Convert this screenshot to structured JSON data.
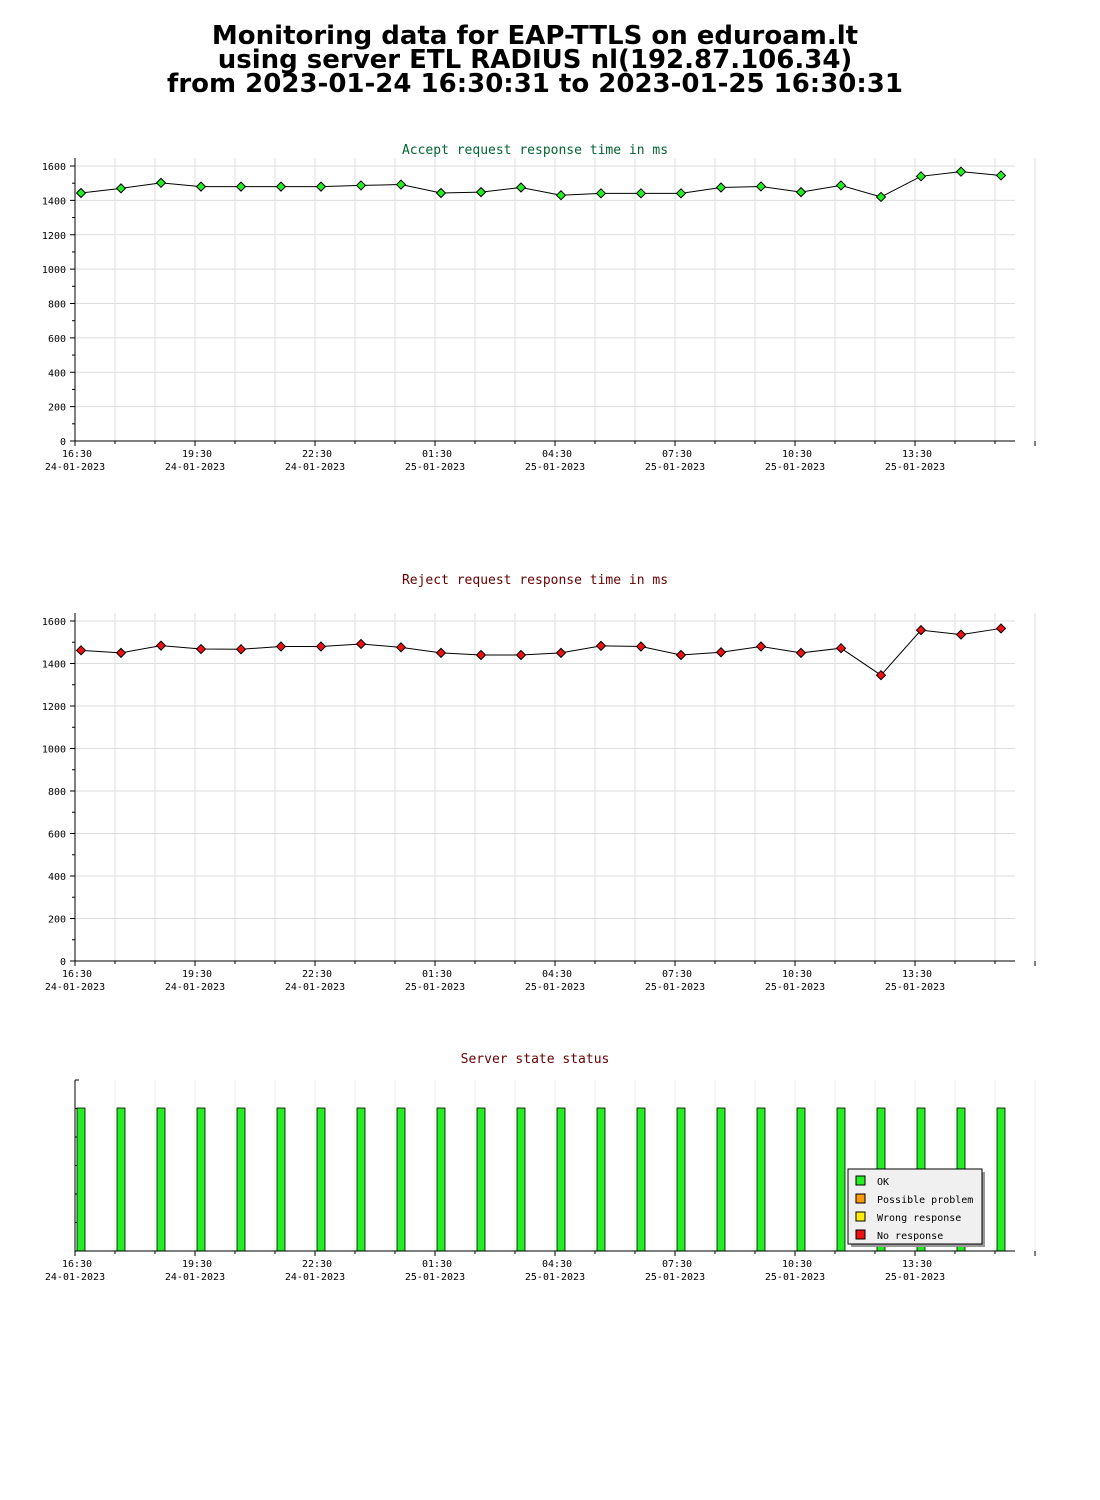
{
  "header": {
    "line1": "Monitoring data for EAP-TTLS on eduroam.lt",
    "line2": "using server ETL RADIUS nl(192.87.106.34)",
    "line3": "from 2023-01-24 16:30:31 to 2023-01-25 16:30:31"
  },
  "x_ticks": [
    {
      "time": "16:30",
      "date": "24-01-2023"
    },
    {
      "time": "19:30",
      "date": "24-01-2023"
    },
    {
      "time": "22:30",
      "date": "24-01-2023"
    },
    {
      "time": "01:30",
      "date": "25-01-2023"
    },
    {
      "time": "04:30",
      "date": "25-01-2023"
    },
    {
      "time": "07:30",
      "date": "25-01-2023"
    },
    {
      "time": "10:30",
      "date": "25-01-2023"
    },
    {
      "time": "13:30",
      "date": "25-01-2023"
    }
  ],
  "chart_data": [
    {
      "type": "line",
      "title": "Accept request response time in ms",
      "title_color": "#006633",
      "marker_color": "#22ee22",
      "ylim": [
        0,
        1600
      ],
      "y_ticks": [
        0,
        200,
        400,
        600,
        800,
        1000,
        1200,
        1400,
        1600
      ],
      "grid": true,
      "values": [
        1443,
        1470,
        1502,
        1480,
        1480,
        1480,
        1480,
        1487,
        1492,
        1443,
        1448,
        1475,
        1430,
        1441,
        1441,
        1441,
        1475,
        1481,
        1448,
        1487,
        1420,
        1540,
        1567,
        1545
      ]
    },
    {
      "type": "line",
      "title": "Reject request response time in ms",
      "title_color": "#660000",
      "marker_color": "#ee1111",
      "ylim": [
        0,
        1600
      ],
      "y_ticks": [
        0,
        200,
        400,
        600,
        800,
        1000,
        1200,
        1400,
        1600
      ],
      "grid": true,
      "values": [
        1462,
        1450,
        1484,
        1468,
        1467,
        1480,
        1480,
        1492,
        1476,
        1450,
        1440,
        1440,
        1450,
        1483,
        1480,
        1440,
        1453,
        1480,
        1450,
        1472,
        1345,
        1557,
        1536,
        1565
      ]
    },
    {
      "type": "bar",
      "title": "Server state status",
      "title_color": "#660000",
      "states": [
        "OK",
        "OK",
        "OK",
        "OK",
        "OK",
        "OK",
        "OK",
        "OK",
        "OK",
        "OK",
        "OK",
        "OK",
        "OK",
        "OK",
        "OK",
        "OK",
        "OK",
        "OK",
        "OK",
        "OK",
        "OK",
        "OK",
        "OK",
        "OK"
      ],
      "legend": [
        {
          "label": "OK",
          "color": "#22ee22"
        },
        {
          "label": "Possible problem",
          "color": "#ff9900"
        },
        {
          "label": "Wrong response",
          "color": "#ffee00"
        },
        {
          "label": "No response",
          "color": "#ee1111"
        }
      ],
      "legend_position": "bottom-right"
    }
  ]
}
